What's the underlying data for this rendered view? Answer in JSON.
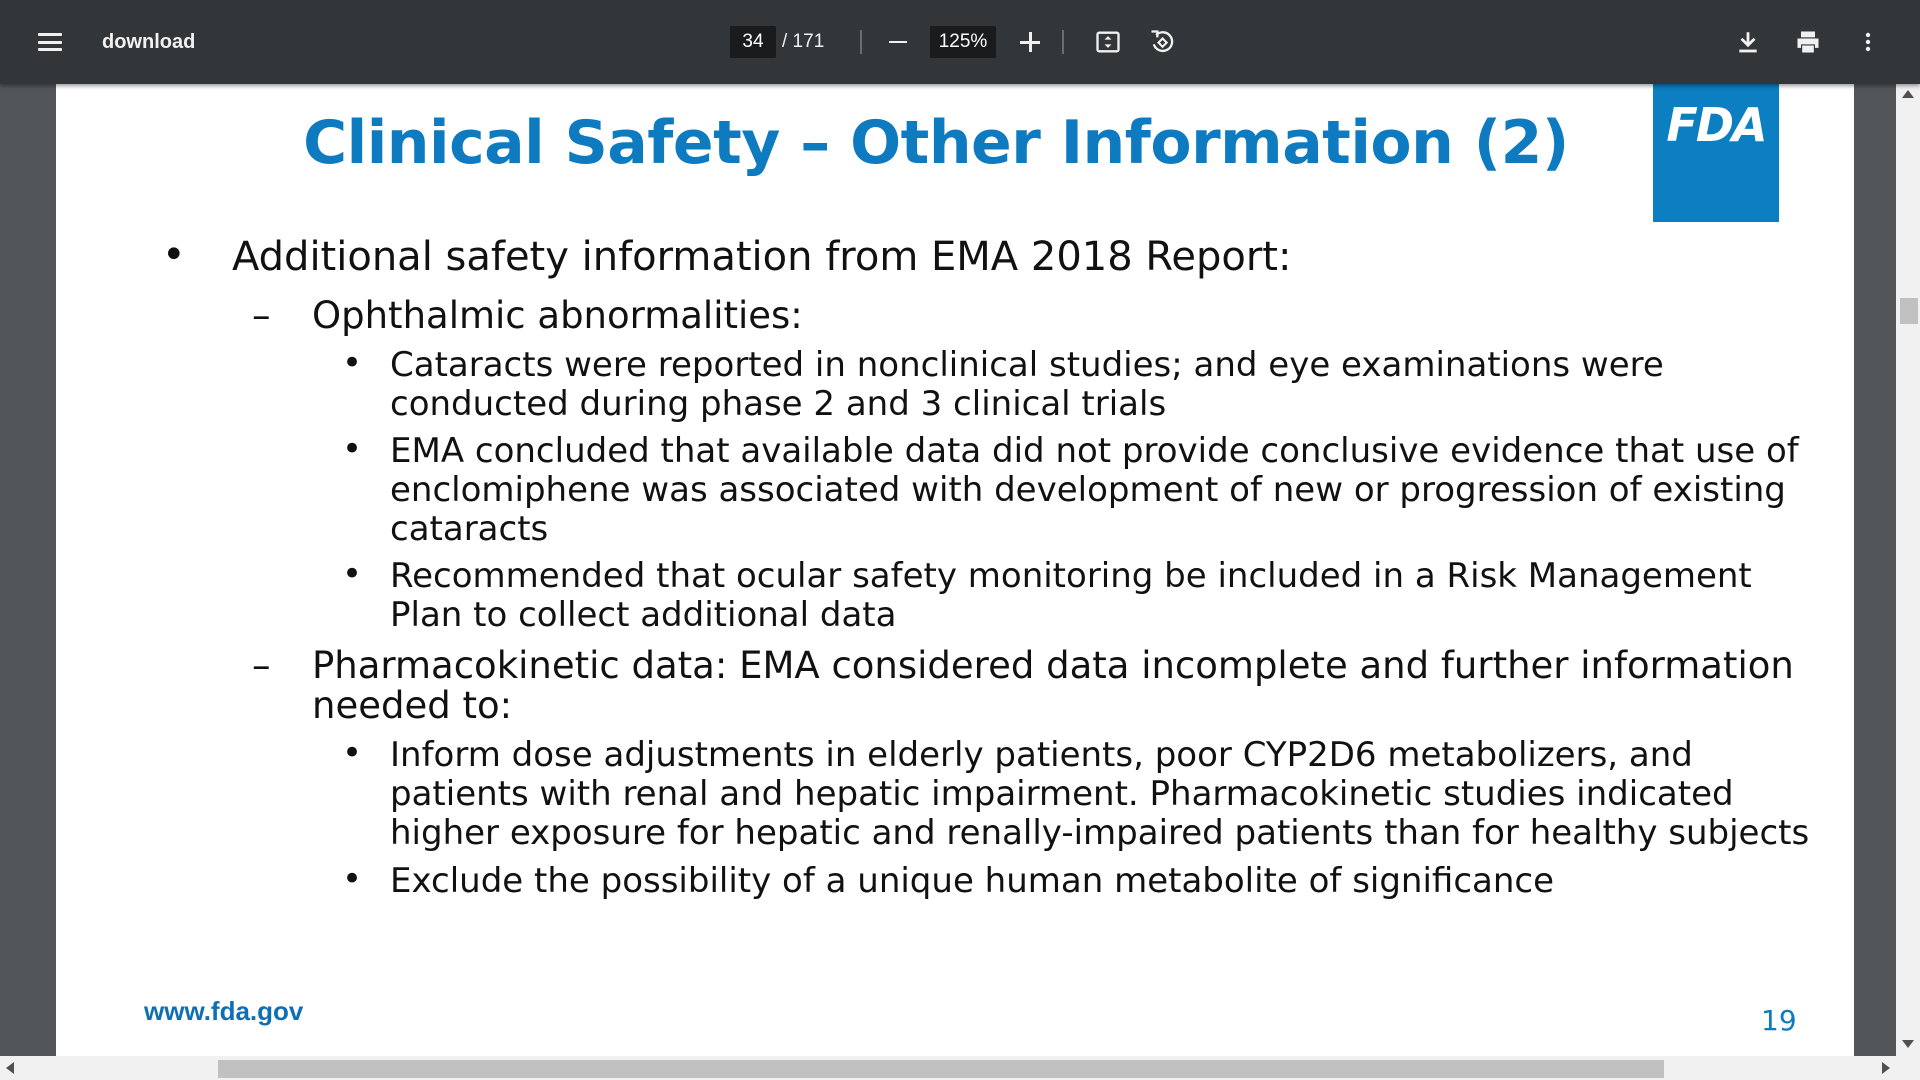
{
  "toolbar": {
    "title": "download",
    "page_current": "34",
    "page_total": "/ 171",
    "zoom": "125%"
  },
  "icons": {
    "menu": "hamburger-menu-icon",
    "zoom_out": "minus-icon",
    "zoom_in": "plus-icon",
    "fit": "fit-to-page-icon",
    "rotate": "rotate-icon",
    "download": "download-icon",
    "print": "print-icon",
    "more": "more-vertical-icon"
  },
  "slide": {
    "title": "Clinical Safety – Other Information (2)",
    "logo_text": "FDA",
    "bullets": {
      "b1_marker": "•",
      "b1_text": "Additional safety information from EMA 2018 Report:",
      "b2a_marker": "–",
      "b2a_text": "Ophthalmic abnormalities:",
      "b3a_line1": "Cataracts were reported in nonclinical studies; and eye examinations were",
      "b3a_line2": "conducted during phase 2 and 3 clinical trials",
      "b3b_line1": "EMA concluded that available data did not provide conclusive evidence that use of",
      "b3b_line2": "enclomiphene was associated with development of new or progression of existing",
      "b3b_line3": "cataracts",
      "b3c_line1": "Recommended that ocular safety monitoring be included in a Risk Management",
      "b3c_line2": "Plan to collect additional data",
      "b2b_marker": "–",
      "b2b_line1": "Pharmacokinetic data: EMA considered data incomplete and further information",
      "b2b_line2": "needed to:",
      "b3d_line1": "Inform dose adjustments in elderly patients, poor CYP2D6 metabolizers, and",
      "b3d_line2": "patients with renal and hepatic impairment. Pharmacokinetic studies indicated",
      "b3d_line3": "higher exposure for hepatic and renally-impaired patients than for healthy subjects",
      "b3e_line1": "Exclude the possibility of a unique human metabolite of significance",
      "sub_marker": "•"
    },
    "footer_url": "www.fda.gov",
    "page_number": "19"
  },
  "colors": {
    "toolbar_bg": "#323639",
    "viewer_bg": "#525659",
    "title_blue": "#0e7ac0",
    "logo_blue": "#0b7fc2"
  }
}
